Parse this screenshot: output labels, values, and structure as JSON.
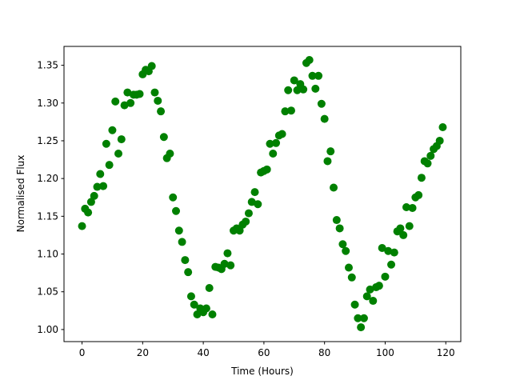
{
  "chart_data": {
    "type": "scatter",
    "xlabel": "Time (Hours)",
    "ylabel": "Normalised Flux",
    "color": "#008000",
    "x": [
      0,
      1,
      2,
      3,
      4,
      5,
      6,
      7,
      8,
      9,
      10,
      11,
      12,
      13,
      14,
      15,
      16,
      17,
      18,
      19,
      20,
      21,
      22,
      23,
      24,
      25,
      26,
      27,
      28,
      29,
      30,
      31,
      32,
      33,
      34,
      35,
      36,
      37,
      38,
      39,
      40,
      41,
      42,
      43,
      44,
      45,
      46,
      47,
      48,
      49,
      50,
      51,
      52,
      53,
      54,
      55,
      56,
      57,
      58,
      59,
      60,
      61,
      62,
      63,
      64,
      65,
      66,
      67,
      68,
      69,
      70,
      71,
      72,
      73,
      74,
      75,
      76,
      77,
      78,
      79,
      80,
      81,
      82,
      83,
      84,
      85,
      86,
      87,
      88,
      89,
      90,
      91,
      92,
      93,
      94,
      95,
      96,
      97,
      98,
      99,
      100,
      101,
      102,
      103,
      104,
      105,
      106,
      107,
      108,
      109,
      110,
      111,
      112,
      113,
      114,
      115,
      116,
      117,
      118,
      119
    ],
    "values": [
      1.137,
      1.16,
      1.155,
      1.169,
      1.177,
      1.189,
      1.206,
      1.19,
      1.246,
      1.218,
      1.264,
      1.302,
      1.233,
      1.252,
      1.297,
      1.314,
      1.3,
      1.311,
      1.311,
      1.312,
      1.338,
      1.344,
      1.342,
      1.349,
      1.314,
      1.303,
      1.289,
      1.255,
      1.227,
      1.233,
      1.175,
      1.157,
      1.131,
      1.116,
      1.092,
      1.076,
      1.044,
      1.033,
      1.02,
      1.028,
      1.023,
      1.028,
      1.055,
      1.02,
      1.083,
      1.082,
      1.08,
      1.087,
      1.101,
      1.085,
      1.131,
      1.134,
      1.131,
      1.139,
      1.143,
      1.154,
      1.169,
      1.182,
      1.166,
      1.208,
      1.21,
      1.212,
      1.246,
      1.233,
      1.247,
      1.257,
      1.259,
      1.289,
      1.317,
      1.29,
      1.33,
      1.317,
      1.325,
      1.318,
      1.353,
      1.357,
      1.336,
      1.319,
      1.336,
      1.299,
      1.279,
      1.223,
      1.236,
      1.188,
      1.145,
      1.134,
      1.113,
      1.104,
      1.082,
      1.069,
      1.033,
      1.015,
      1.003,
      1.015,
      1.044,
      1.053,
      1.038,
      1.056,
      1.058,
      1.108,
      1.07,
      1.104,
      1.086,
      1.102,
      1.13,
      1.134,
      1.125,
      1.162,
      1.137,
      1.161,
      1.175,
      1.178,
      1.201,
      1.223,
      1.22,
      1.23,
      1.239,
      1.243,
      1.25,
      1.268
    ],
    "xlim": [
      -5.95,
      124.95
    ],
    "xticks": [
      0,
      20,
      40,
      60,
      80,
      100,
      120
    ],
    "ylim": [
      0.984,
      1.375
    ],
    "yticks": [
      {
        "value": 1,
        "label": "1.00"
      },
      1.05,
      {
        "value": 1.1,
        "label": "1.10"
      },
      1.15,
      {
        "value": 1.2,
        "label": "1.20"
      },
      1.25,
      {
        "value": 1.3,
        "label": "1.30"
      },
      1.35
    ]
  }
}
